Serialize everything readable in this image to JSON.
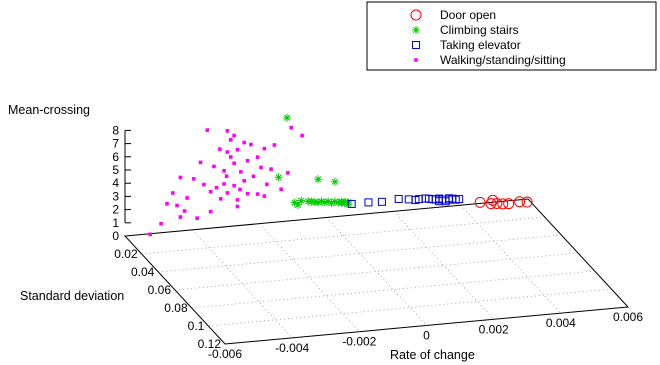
{
  "chart_data": {
    "type": "scatter",
    "projection": "3d",
    "grid": true,
    "legend_position": "top-right",
    "title": "",
    "xlabel": "Rate of change",
    "ylabel": "Standard deviation",
    "zlabel": "Mean-crossing",
    "xlim": [
      -0.006,
      0.006
    ],
    "ylim": [
      0,
      0.12
    ],
    "zlim": [
      0,
      8
    ],
    "x_ticks": [
      -0.006,
      -0.004,
      -0.002,
      0,
      0.002,
      0.004,
      0.006
    ],
    "x_tick_labels": [
      "-0.006",
      "-0.004",
      "-0.002",
      "0",
      "0.002",
      "0.004",
      "0.006"
    ],
    "y_ticks": [
      0.02,
      0.04,
      0.06,
      0.08,
      0.1,
      0.12
    ],
    "y_tick_labels": [
      "0.02",
      "0.04",
      "0.06",
      "0.08",
      "0.1",
      "0.12"
    ],
    "z_ticks": [
      0,
      1,
      2,
      3,
      4,
      5,
      6,
      7,
      8
    ],
    "z_tick_labels": [
      "0",
      "1",
      "2",
      "3",
      "4",
      "5",
      "6",
      "7",
      "8"
    ],
    "series": [
      {
        "name": "Door open",
        "marker": "circle-open",
        "color": "#ff0000",
        "points": [
          [
            0.0045,
            0.003,
            0.3
          ],
          [
            0.0048,
            0.004,
            0.2
          ],
          [
            0.005,
            0.003,
            0.1
          ],
          [
            0.0051,
            0.006,
            0.25
          ],
          [
            0.0053,
            0.005,
            0.15
          ],
          [
            0.0057,
            0.002,
            0.0
          ],
          [
            0.0059,
            0.003,
            0.0
          ],
          [
            0.0049,
            0.002,
            0.3
          ]
        ]
      },
      {
        "name": "Climbing stairs",
        "marker": "star",
        "color": "#00cc00",
        "points": [
          [
            -0.0012,
            0.001,
            7.9
          ],
          [
            -0.0015,
            0.003,
            3.6
          ],
          [
            -0.0003,
            0.002,
            3.1
          ],
          [
            0.0002,
            0.002,
            2.8
          ],
          [
            -0.0008,
            0.002,
            1.6
          ],
          [
            -0.0006,
            0.002,
            1.5
          ],
          [
            -0.0005,
            0.002,
            1.45
          ],
          [
            -0.0004,
            0.002,
            1.4
          ],
          [
            -0.0003,
            0.002,
            1.35
          ],
          [
            -0.0002,
            0.002,
            1.4
          ],
          [
            -0.0001,
            0.002,
            1.3
          ],
          [
            0.0,
            0.002,
            1.35
          ],
          [
            0.0001,
            0.002,
            1.2
          ],
          [
            0.0002,
            0.002,
            1.3
          ],
          [
            0.0003,
            0.002,
            1.2
          ],
          [
            0.0004,
            0.002,
            1.25
          ],
          [
            0.0004,
            0.002,
            1.15
          ],
          [
            0.0005,
            0.002,
            1.2
          ],
          [
            0.0005,
            0.002,
            1.1
          ],
          [
            0.0006,
            0.002,
            1.15
          ],
          [
            -0.0009,
            0.002,
            1.3
          ],
          [
            -0.001,
            0.002,
            1.5
          ],
          [
            0.0006,
            0.002,
            1.0
          ]
        ]
      },
      {
        "name": "Taking elevator",
        "marker": "square-open",
        "color": "#0000cc",
        "points": [
          [
            0.0007,
            0.002,
            1.0
          ],
          [
            0.0012,
            0.002,
            1.0
          ],
          [
            0.0016,
            0.002,
            0.95
          ],
          [
            0.0021,
            0.002,
            1.05
          ],
          [
            0.0024,
            0.002,
            0.95
          ],
          [
            0.0026,
            0.002,
            0.85
          ],
          [
            0.0027,
            0.002,
            0.9
          ],
          [
            0.0029,
            0.002,
            0.9
          ],
          [
            0.003,
            0.002,
            0.85
          ],
          [
            0.0031,
            0.002,
            0.8
          ],
          [
            0.0032,
            0.002,
            0.75
          ],
          [
            0.0033,
            0.002,
            0.8
          ],
          [
            0.0034,
            0.002,
            0.7
          ],
          [
            0.0036,
            0.002,
            0.75
          ],
          [
            0.0036,
            0.002,
            0.65
          ],
          [
            0.0037,
            0.002,
            0.7
          ],
          [
            0.0038,
            0.002,
            0.6
          ],
          [
            0.0039,
            0.002,
            0.62
          ],
          [
            0.0035,
            0.002,
            0.55
          ],
          [
            0.0033,
            0.002,
            0.6
          ]
        ]
      },
      {
        "name": "Walking/standing/sitting",
        "marker": "square-filled",
        "color": "#ff00ff",
        "points": [
          [
            -0.0053,
            0.002,
            0.1
          ],
          [
            -0.005,
            0.003,
            0.9
          ],
          [
            -0.0048,
            0.002,
            2.3
          ],
          [
            -0.0046,
            0.001,
            3.0
          ],
          [
            -0.0045,
            0.002,
            2.1
          ],
          [
            -0.0044,
            0.002,
            4.2
          ],
          [
            -0.0043,
            0.003,
            1.7
          ],
          [
            -0.0042,
            0.002,
            2.6
          ],
          [
            -0.004,
            0.002,
            4.0
          ],
          [
            -0.0038,
            0.002,
            5.2
          ],
          [
            -0.0037,
            0.002,
            3.5
          ],
          [
            -0.0036,
            0.002,
            7.6
          ],
          [
            -0.0035,
            0.002,
            2.9
          ],
          [
            -0.0034,
            0.002,
            4.8
          ],
          [
            -0.0033,
            0.001,
            3.1
          ],
          [
            -0.0032,
            0.002,
            2.3
          ],
          [
            -0.0032,
            0.001,
            6.0
          ],
          [
            -0.0031,
            0.002,
            3.4
          ],
          [
            -0.0031,
            0.002,
            4.4
          ],
          [
            -0.003,
            0.002,
            5.8
          ],
          [
            -0.003,
            0.002,
            7.4
          ],
          [
            -0.003,
            0.002,
            2.7
          ],
          [
            -0.003,
            0.001,
            3.9
          ],
          [
            -0.0029,
            0.002,
            5.4
          ],
          [
            -0.0029,
            0.002,
            6.7
          ],
          [
            -0.0028,
            0.002,
            3.2
          ],
          [
            -0.0028,
            0.002,
            4.9
          ],
          [
            -0.0028,
            0.002,
            7.0
          ],
          [
            -0.0027,
            0.002,
            2.1
          ],
          [
            -0.0027,
            0.002,
            5.9
          ],
          [
            -0.0026,
            0.001,
            2.8
          ],
          [
            -0.0026,
            0.002,
            4.2
          ],
          [
            -0.0025,
            0.002,
            6.4
          ],
          [
            -0.0025,
            0.002,
            3.5
          ],
          [
            -0.0024,
            0.002,
            5.0
          ],
          [
            -0.0024,
            0.002,
            2.5
          ],
          [
            -0.0023,
            0.002,
            6.2
          ],
          [
            -0.0022,
            0.001,
            3.7
          ],
          [
            -0.0021,
            0.002,
            5.2
          ],
          [
            -0.0021,
            0.002,
            2.4
          ],
          [
            -0.002,
            0.002,
            4.4
          ],
          [
            -0.0019,
            0.002,
            5.8
          ],
          [
            -0.0018,
            0.001,
            3.0
          ],
          [
            -0.0017,
            0.002,
            4.2
          ],
          [
            -0.0016,
            0.002,
            6.0
          ],
          [
            -0.0014,
            0.002,
            2.6
          ],
          [
            -0.0012,
            0.002,
            3.8
          ],
          [
            -0.0011,
            0.002,
            7.2
          ],
          [
            -0.0044,
            0.002,
            1.2
          ],
          [
            -0.0039,
            0.002,
            1.0
          ],
          [
            -0.0035,
            0.002,
            1.4
          ],
          [
            -0.0027,
            0.002,
            1.6
          ],
          [
            -0.0019,
            0.002,
            2.2
          ],
          [
            -0.0008,
            0.003,
            6.6
          ]
        ]
      }
    ]
  }
}
